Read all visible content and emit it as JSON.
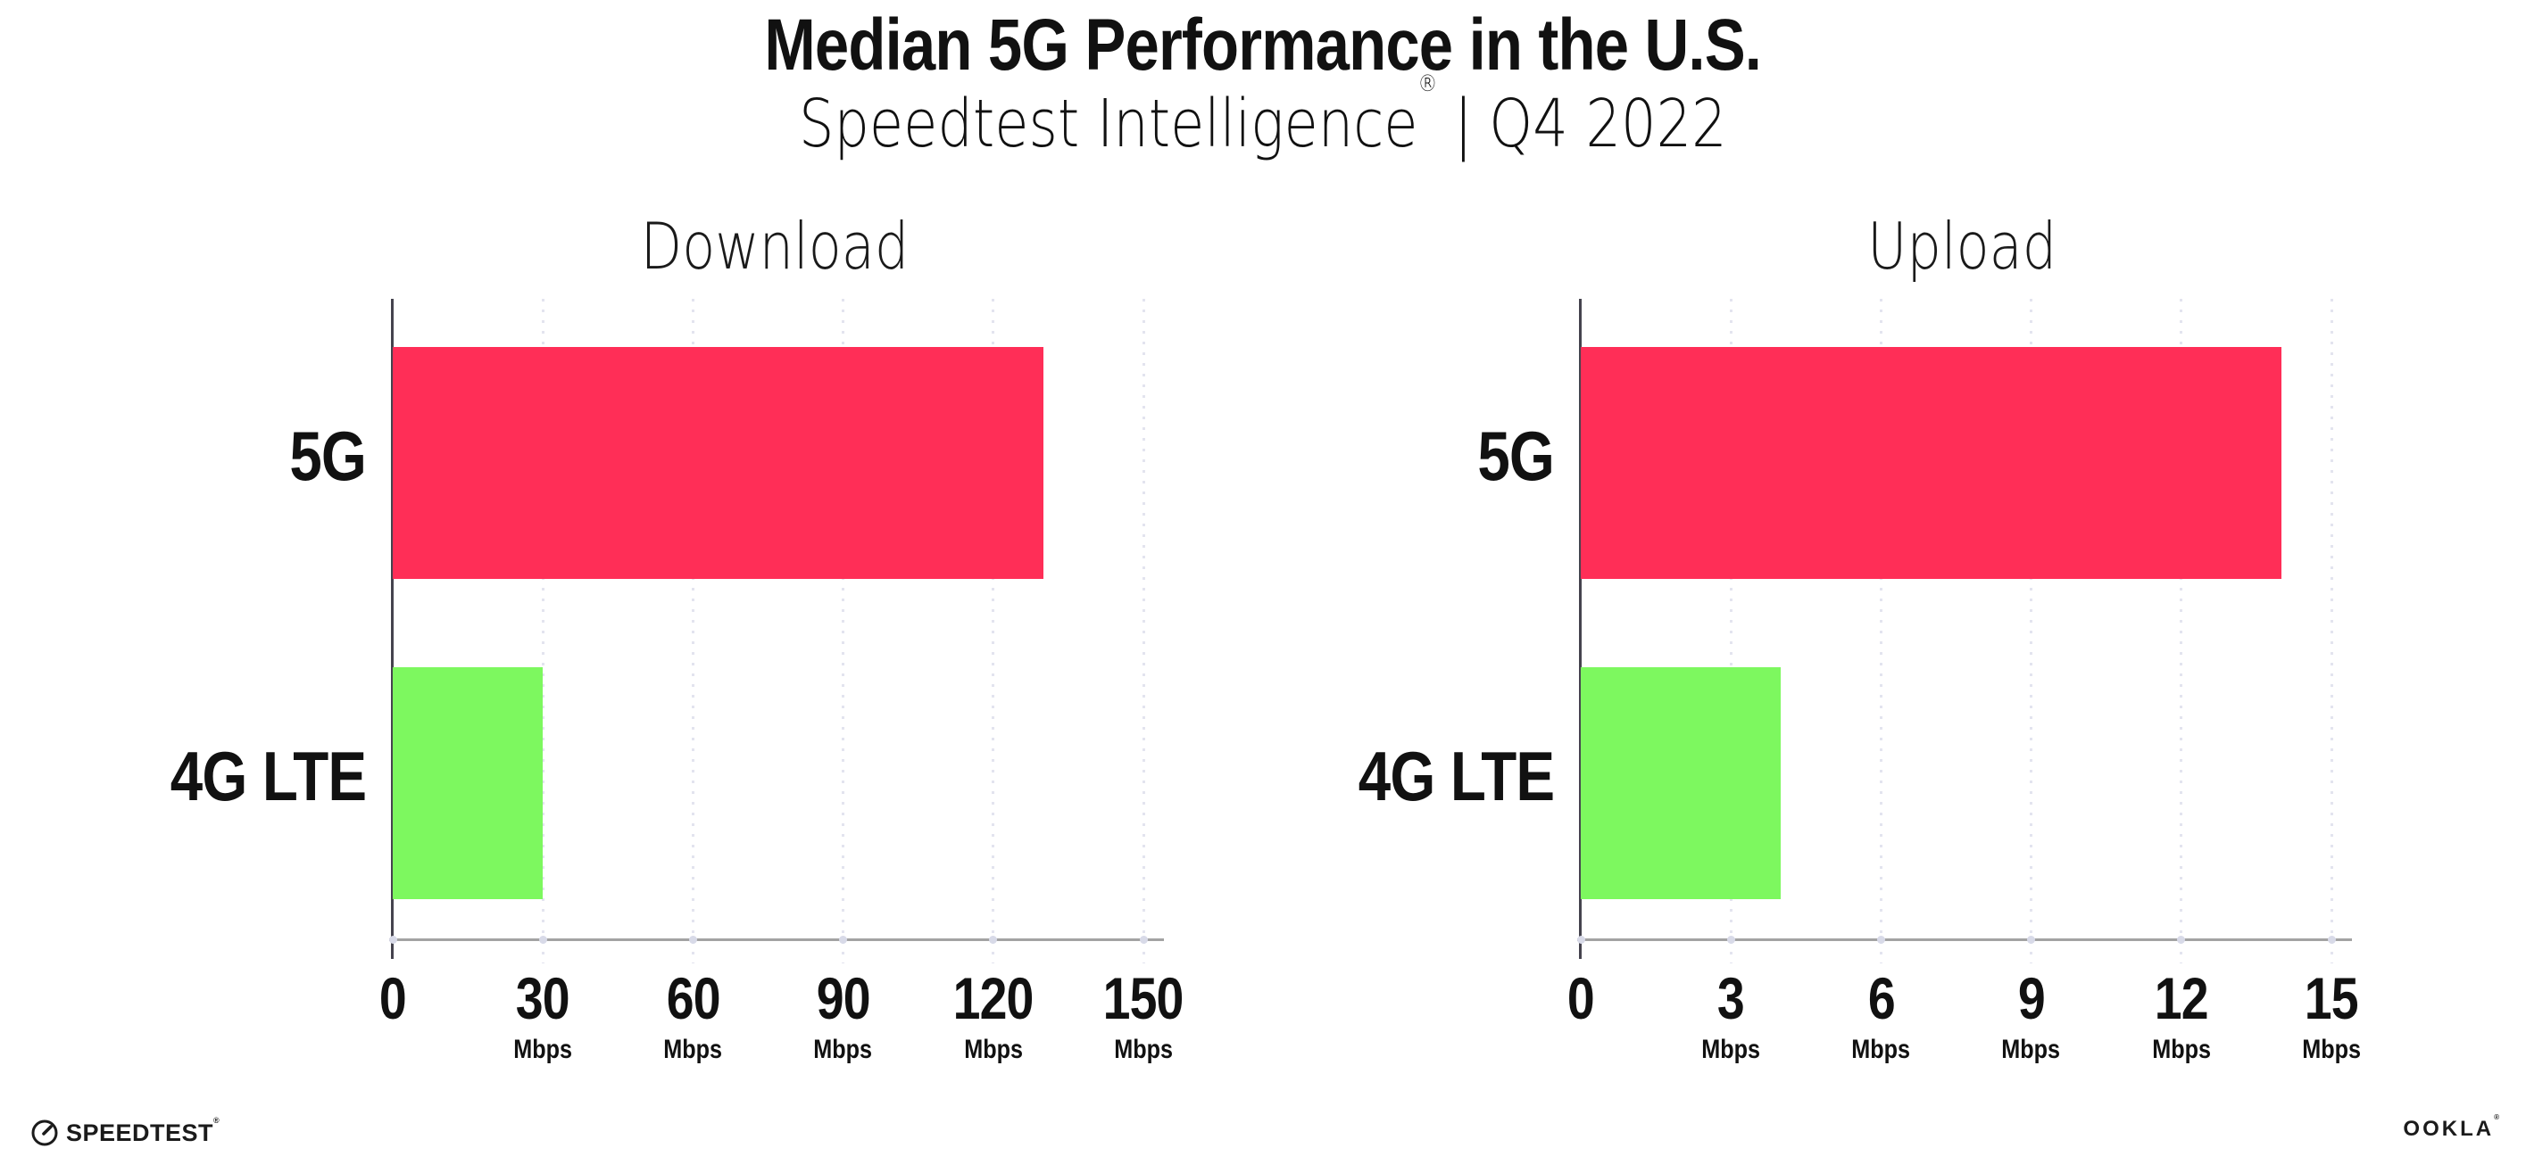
{
  "title": "Median 5G Performance in the U.S.",
  "subtitle": {
    "brand": "Speedtest Intelligence",
    "reg_mark": "®",
    "separator": "|",
    "period": "Q4 2022"
  },
  "colors": {
    "bar_5g": "#FF2E57",
    "bar_4g_lte": "#7DF85F",
    "gridline": "#E3E4EF",
    "axis_line": "#A3A3A3",
    "axis_spine": "#45434E",
    "text": "#111111"
  },
  "chart_data": [
    {
      "type": "bar",
      "orientation": "horizontal",
      "title": "Download",
      "categories": [
        "5G",
        "4G LTE"
      ],
      "values": [
        130,
        30
      ],
      "unit": "Mbps",
      "tick_unit": "Mbps",
      "xlim": [
        0,
        150
      ],
      "xticks": [
        0,
        30,
        60,
        90,
        120,
        150
      ],
      "bar_colors": [
        "#FF2E57",
        "#7DF85F"
      ],
      "grid": "dotted-vertical",
      "legend": "none"
    },
    {
      "type": "bar",
      "orientation": "horizontal",
      "title": "Upload",
      "categories": [
        "5G",
        "4G LTE"
      ],
      "values": [
        14,
        4
      ],
      "unit": "Mbps",
      "tick_unit": "Mbps",
      "xlim": [
        0,
        15
      ],
      "xticks": [
        0,
        3,
        6,
        9,
        12,
        15
      ],
      "bar_colors": [
        "#FF2E57",
        "#7DF85F"
      ],
      "grid": "dotted-vertical",
      "legend": "none"
    }
  ],
  "footer": {
    "speedtest_logo_text": "SPEEDTEST",
    "speedtest_mark": "®",
    "ookla_logo_text": "OOKLA",
    "ookla_mark": "®"
  }
}
